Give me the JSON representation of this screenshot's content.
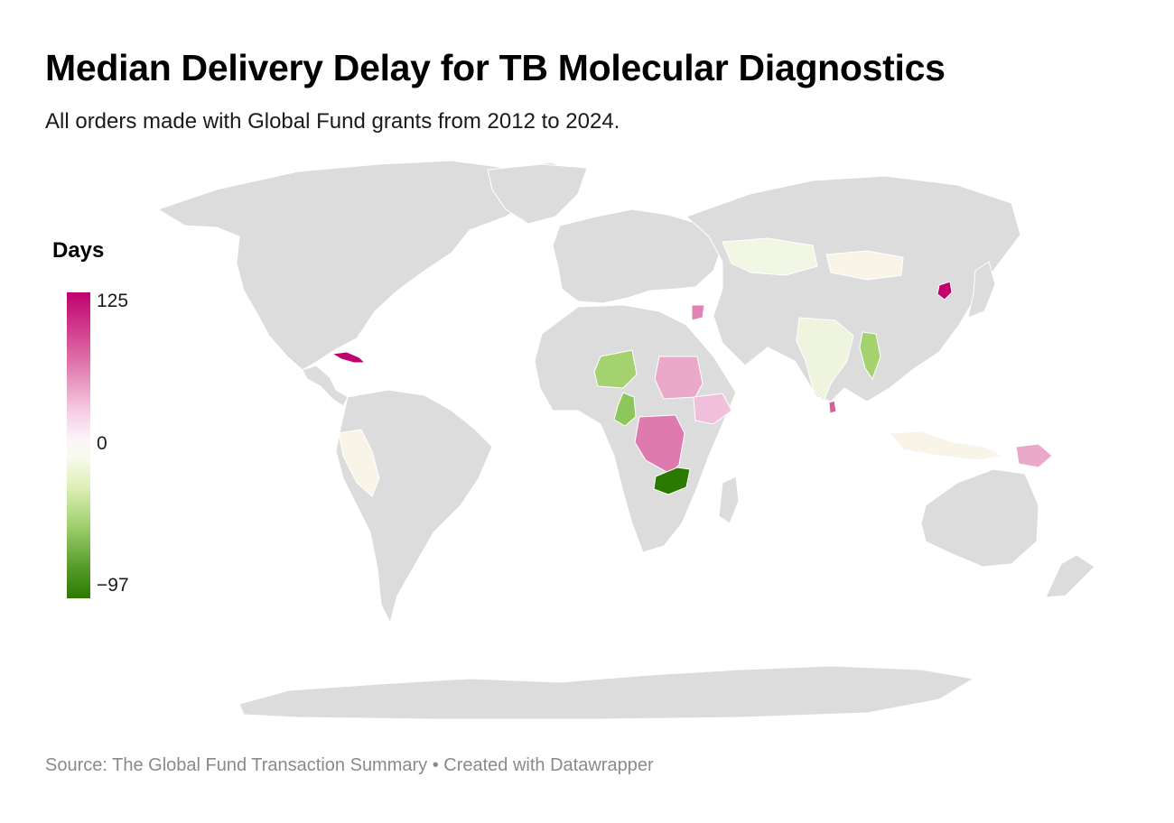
{
  "header": {
    "title": "Median Delivery Delay for TB Molecular Diagnostics",
    "subtitle": "All orders made with Global Fund grants from 2012 to 2024."
  },
  "legend": {
    "title": "Days",
    "max_label": "125",
    "mid_label": "0",
    "min_label": "−97",
    "scale": {
      "min": -97,
      "mid": 0,
      "max": 125
    },
    "colors": {
      "high": "#c0006f",
      "mid": "#f7f7f0",
      "low": "#2b7a00"
    }
  },
  "footer": {
    "source": "Source: The Global Fund Transaction Summary • Created with Datawrapper"
  },
  "map": {
    "no_data_color": "#dcdcdc",
    "regions": [
      {
        "name": "Cuba",
        "color": "#c0006f"
      },
      {
        "name": "North Korea",
        "color": "#c0006f"
      },
      {
        "name": "DR Congo",
        "color": "#de7aae"
      },
      {
        "name": "Sudan",
        "color": "#eaa8cb"
      },
      {
        "name": "Zambia",
        "color": "#2b7a00"
      },
      {
        "name": "Niger",
        "color": "#a3d26f"
      },
      {
        "name": "Cameroon",
        "color": "#8dc65a"
      },
      {
        "name": "Myanmar",
        "color": "#a3d26f"
      },
      {
        "name": "Sri Lanka",
        "color": "#d9609b"
      },
      {
        "name": "Papua New Guinea",
        "color": "#eaa8cb"
      },
      {
        "name": "Syria",
        "color": "#e283b6"
      },
      {
        "name": "Ethiopia",
        "color": "#f0bfdb"
      },
      {
        "name": "India",
        "color": "#eef4dd"
      },
      {
        "name": "Kazakhstan",
        "color": "#f2f6e4"
      },
      {
        "name": "Mongolia",
        "color": "#f8f4e8"
      },
      {
        "name": "Peru",
        "color": "#f8f4e8"
      },
      {
        "name": "Indonesia",
        "color": "#f8f4e8"
      }
    ]
  }
}
